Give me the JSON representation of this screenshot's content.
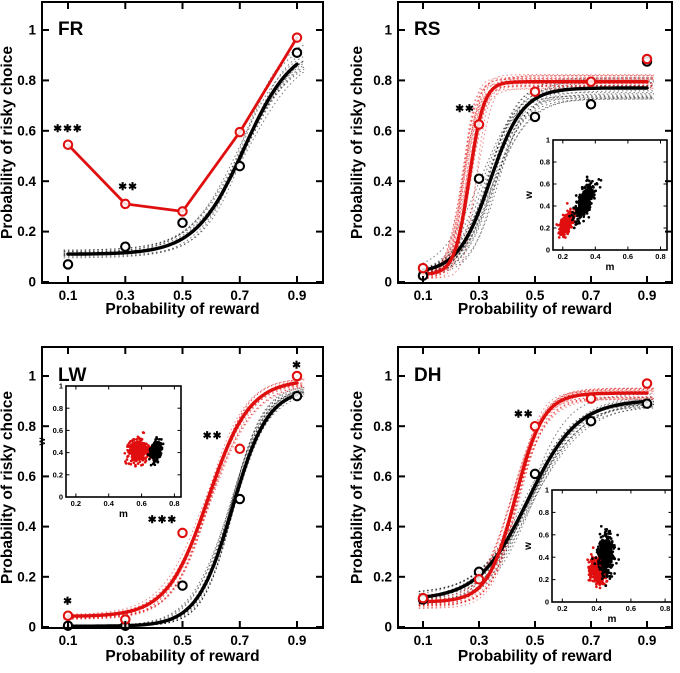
{
  "figure": {
    "background": "#ffffff",
    "accent_red": "#e00f0f",
    "axis_color": "#000000",
    "xlabel": "Probability of reward",
    "ylabel": "Probability of risky choice"
  },
  "chart_data": [
    {
      "type": "line",
      "panel_label": "FR",
      "xlabel": "Probability of reward",
      "ylabel": "Probability of risky choice",
      "x_ticks": [
        0.1,
        0.3,
        0.5,
        0.7,
        0.9
      ],
      "y_ticks": [
        0,
        0.2,
        0.4,
        0.6,
        0.8,
        1
      ],
      "xlim": [
        0.0,
        1.0
      ],
      "ylim": [
        0,
        1.12
      ],
      "x": [
        0.1,
        0.3,
        0.5,
        0.7,
        0.9
      ],
      "series": [
        {
          "name": "black-condition",
          "color": "#000000",
          "marker": "open-circle",
          "values": [
            0.07,
            0.14,
            0.235,
            0.46,
            0.91
          ],
          "fit": {
            "kind": "sigmoid",
            "lo": 0.11,
            "hi": 0.95,
            "mid": 0.715,
            "k": 0.085
          },
          "bootstrap": {
            "n": 12,
            "mid_jitter": 0.018,
            "hi_jitter": 0.035,
            "lo_jitter": 0.022,
            "k_jitter": 0.2,
            "seed": 11
          }
        },
        {
          "name": "red-condition",
          "color": "#e00f0f",
          "marker": "open-circle",
          "values": [
            0.545,
            0.31,
            0.28,
            0.595,
            0.97
          ],
          "fit": {
            "kind": "polyline"
          },
          "bootstrap": null
        }
      ],
      "annotations": [
        {
          "x": 0.1,
          "y": 0.61,
          "text": "✱✱✱"
        },
        {
          "x": 0.31,
          "y": 0.38,
          "text": "✱✱"
        }
      ],
      "inset": null
    },
    {
      "type": "line",
      "panel_label": "RS",
      "xlabel": "Probability of reward",
      "ylabel": "Probability of risky choice",
      "x_ticks": [
        0.1,
        0.3,
        0.5,
        0.7,
        0.9
      ],
      "y_ticks": [
        0,
        0.2,
        0.4,
        0.6,
        0.8,
        1
      ],
      "xlim": [
        0.0,
        1.0
      ],
      "ylim": [
        0,
        1.12
      ],
      "x": [
        0.1,
        0.3,
        0.5,
        0.7,
        0.9
      ],
      "series": [
        {
          "name": "black-condition",
          "color": "#000000",
          "marker": "open-circle",
          "values": [
            0.025,
            0.41,
            0.655,
            0.705,
            0.875
          ],
          "fit": {
            "kind": "sigmoid",
            "lo": 0.035,
            "hi": 0.77,
            "mid": 0.34,
            "k": 0.058
          },
          "bootstrap": {
            "n": 18,
            "mid_jitter": 0.035,
            "hi_jitter": 0.045,
            "lo_jitter": 0.015,
            "k_jitter": 0.25,
            "seed": 12
          }
        },
        {
          "name": "red-condition",
          "color": "#e00f0f",
          "marker": "open-circle",
          "values": [
            0.055,
            0.625,
            0.755,
            0.795,
            0.885
          ],
          "fit": {
            "kind": "sigmoid",
            "lo": 0.03,
            "hi": 0.795,
            "mid": 0.265,
            "k": 0.026
          },
          "bootstrap": {
            "n": 18,
            "mid_jitter": 0.028,
            "hi_jitter": 0.03,
            "lo_jitter": 0.02,
            "k_jitter": 0.3,
            "seed": 13
          }
        }
      ],
      "annotations": [
        {
          "x": 0.25,
          "y": 0.69,
          "text": "✱✱"
        }
      ],
      "inset": {
        "position": "right-middle",
        "xlabel": "m",
        "ylabel": "w",
        "x_ticks": [
          0.2,
          0.4,
          0.6,
          0.8
        ],
        "y_ticks": [
          0,
          0.2,
          0.4,
          0.6,
          0.8,
          1
        ],
        "x_range": [
          0.14,
          0.84
        ],
        "y_range": [
          0,
          1
        ],
        "clusters": [
          {
            "color": "#e00f0f",
            "center_m": 0.225,
            "center_w": 0.245,
            "sd_m": 0.022,
            "sd_w": 0.055,
            "corr": 0.65,
            "n": 380,
            "seed": 21
          },
          {
            "color": "#000000",
            "center_m": 0.335,
            "center_w": 0.445,
            "sd_m": 0.03,
            "sd_w": 0.082,
            "corr": 0.7,
            "n": 380,
            "seed": 22
          }
        ]
      }
    },
    {
      "type": "line",
      "panel_label": "LW",
      "xlabel": "Probability of reward",
      "ylabel": "Probability of risky choice",
      "x_ticks": [
        0.1,
        0.3,
        0.5,
        0.7,
        0.9
      ],
      "y_ticks": [
        0,
        0.2,
        0.4,
        0.6,
        0.8,
        1
      ],
      "xlim": [
        0.0,
        1.0
      ],
      "ylim": [
        0,
        1.12
      ],
      "x": [
        0.1,
        0.3,
        0.5,
        0.7,
        0.9
      ],
      "series": [
        {
          "name": "black-condition",
          "color": "#000000",
          "marker": "open-circle",
          "values": [
            0.005,
            0.005,
            0.165,
            0.51,
            0.92
          ],
          "fit": {
            "kind": "sigmoid",
            "lo": 0.003,
            "hi": 0.95,
            "mid": 0.675,
            "k": 0.062
          },
          "bootstrap": {
            "n": 14,
            "mid_jitter": 0.012,
            "hi_jitter": 0.018,
            "lo_jitter": 0.006,
            "k_jitter": 0.15,
            "seed": 14
          }
        },
        {
          "name": "red-condition",
          "color": "#e00f0f",
          "marker": "open-circle",
          "values": [
            0.045,
            0.03,
            0.375,
            0.71,
            1.0
          ],
          "fit": {
            "kind": "sigmoid",
            "lo": 0.042,
            "hi": 0.985,
            "mid": 0.59,
            "k": 0.072
          },
          "bootstrap": {
            "n": 14,
            "mid_jitter": 0.012,
            "hi_jitter": 0.022,
            "lo_jitter": 0.012,
            "k_jitter": 0.15,
            "seed": 15
          }
        }
      ],
      "annotations": [
        {
          "x": 0.1,
          "y": 0.105,
          "text": "✱"
        },
        {
          "x": 0.43,
          "y": 0.43,
          "text": "✱✱✱"
        },
        {
          "x": 0.605,
          "y": 0.765,
          "text": "✱✱"
        },
        {
          "x": 0.9,
          "y": 1.045,
          "text": "✱"
        }
      ],
      "inset": {
        "position": "top-left",
        "xlabel": "m",
        "ylabel": "w",
        "x_ticks": [
          0.2,
          0.4,
          0.6,
          0.8
        ],
        "y_ticks": [
          0,
          0.2,
          0.4,
          0.6,
          0.8,
          1
        ],
        "x_range": [
          0.14,
          0.84
        ],
        "y_range": [
          0,
          1
        ],
        "clusters": [
          {
            "color": "#e00f0f",
            "center_m": 0.578,
            "center_w": 0.415,
            "sd_m": 0.028,
            "sd_w": 0.05,
            "corr": 0.0,
            "n": 420,
            "seed": 23
          },
          {
            "color": "#000000",
            "center_m": 0.685,
            "center_w": 0.41,
            "sd_m": 0.016,
            "sd_w": 0.04,
            "corr": 0.2,
            "n": 300,
            "seed": 24
          }
        ]
      }
    },
    {
      "type": "line",
      "panel_label": "DH",
      "xlabel": "Probability of reward",
      "ylabel": "Probability of risky choice",
      "x_ticks": [
        0.1,
        0.3,
        0.5,
        0.7,
        0.9
      ],
      "y_ticks": [
        0,
        0.2,
        0.4,
        0.6,
        0.8,
        1
      ],
      "xlim": [
        0.0,
        1.0
      ],
      "ylim": [
        0,
        1.12
      ],
      "x": [
        0.1,
        0.3,
        0.5,
        0.7,
        0.9
      ],
      "series": [
        {
          "name": "black-condition",
          "color": "#000000",
          "marker": "open-circle",
          "values": [
            0.11,
            0.22,
            0.61,
            0.82,
            0.89
          ],
          "fit": {
            "kind": "sigmoid",
            "lo": 0.108,
            "hi": 0.905,
            "mid": 0.475,
            "k": 0.088
          },
          "bootstrap": {
            "n": 16,
            "mid_jitter": 0.016,
            "hi_jitter": 0.028,
            "lo_jitter": 0.03,
            "k_jitter": 0.2,
            "seed": 16
          }
        },
        {
          "name": "red-condition",
          "color": "#e00f0f",
          "marker": "open-circle",
          "values": [
            0.115,
            0.19,
            0.8,
            0.91,
            0.97
          ],
          "fit": {
            "kind": "sigmoid",
            "lo": 0.1,
            "hi": 0.932,
            "mid": 0.43,
            "k": 0.05
          },
          "bootstrap": {
            "n": 16,
            "mid_jitter": 0.014,
            "hi_jitter": 0.03,
            "lo_jitter": 0.03,
            "k_jitter": 0.2,
            "seed": 17
          }
        }
      ],
      "annotations": [
        {
          "x": 0.46,
          "y": 0.85,
          "text": "✱✱"
        }
      ],
      "inset": {
        "position": "bottom-right",
        "xlabel": "m",
        "ylabel": "w",
        "x_ticks": [
          0.2,
          0.4,
          0.6,
          0.8
        ],
        "y_ticks": [
          0,
          0.2,
          0.4,
          0.6,
          0.8,
          1
        ],
        "x_range": [
          0.14,
          0.84
        ],
        "y_range": [
          0,
          1
        ],
        "clusters": [
          {
            "color": "#e00f0f",
            "center_m": 0.405,
            "center_w": 0.27,
            "sd_m": 0.022,
            "sd_w": 0.055,
            "corr": -0.25,
            "n": 400,
            "seed": 25
          },
          {
            "color": "#000000",
            "center_m": 0.455,
            "center_w": 0.425,
            "sd_m": 0.022,
            "sd_w": 0.09,
            "corr": 0.15,
            "n": 400,
            "seed": 26
          }
        ]
      }
    }
  ]
}
